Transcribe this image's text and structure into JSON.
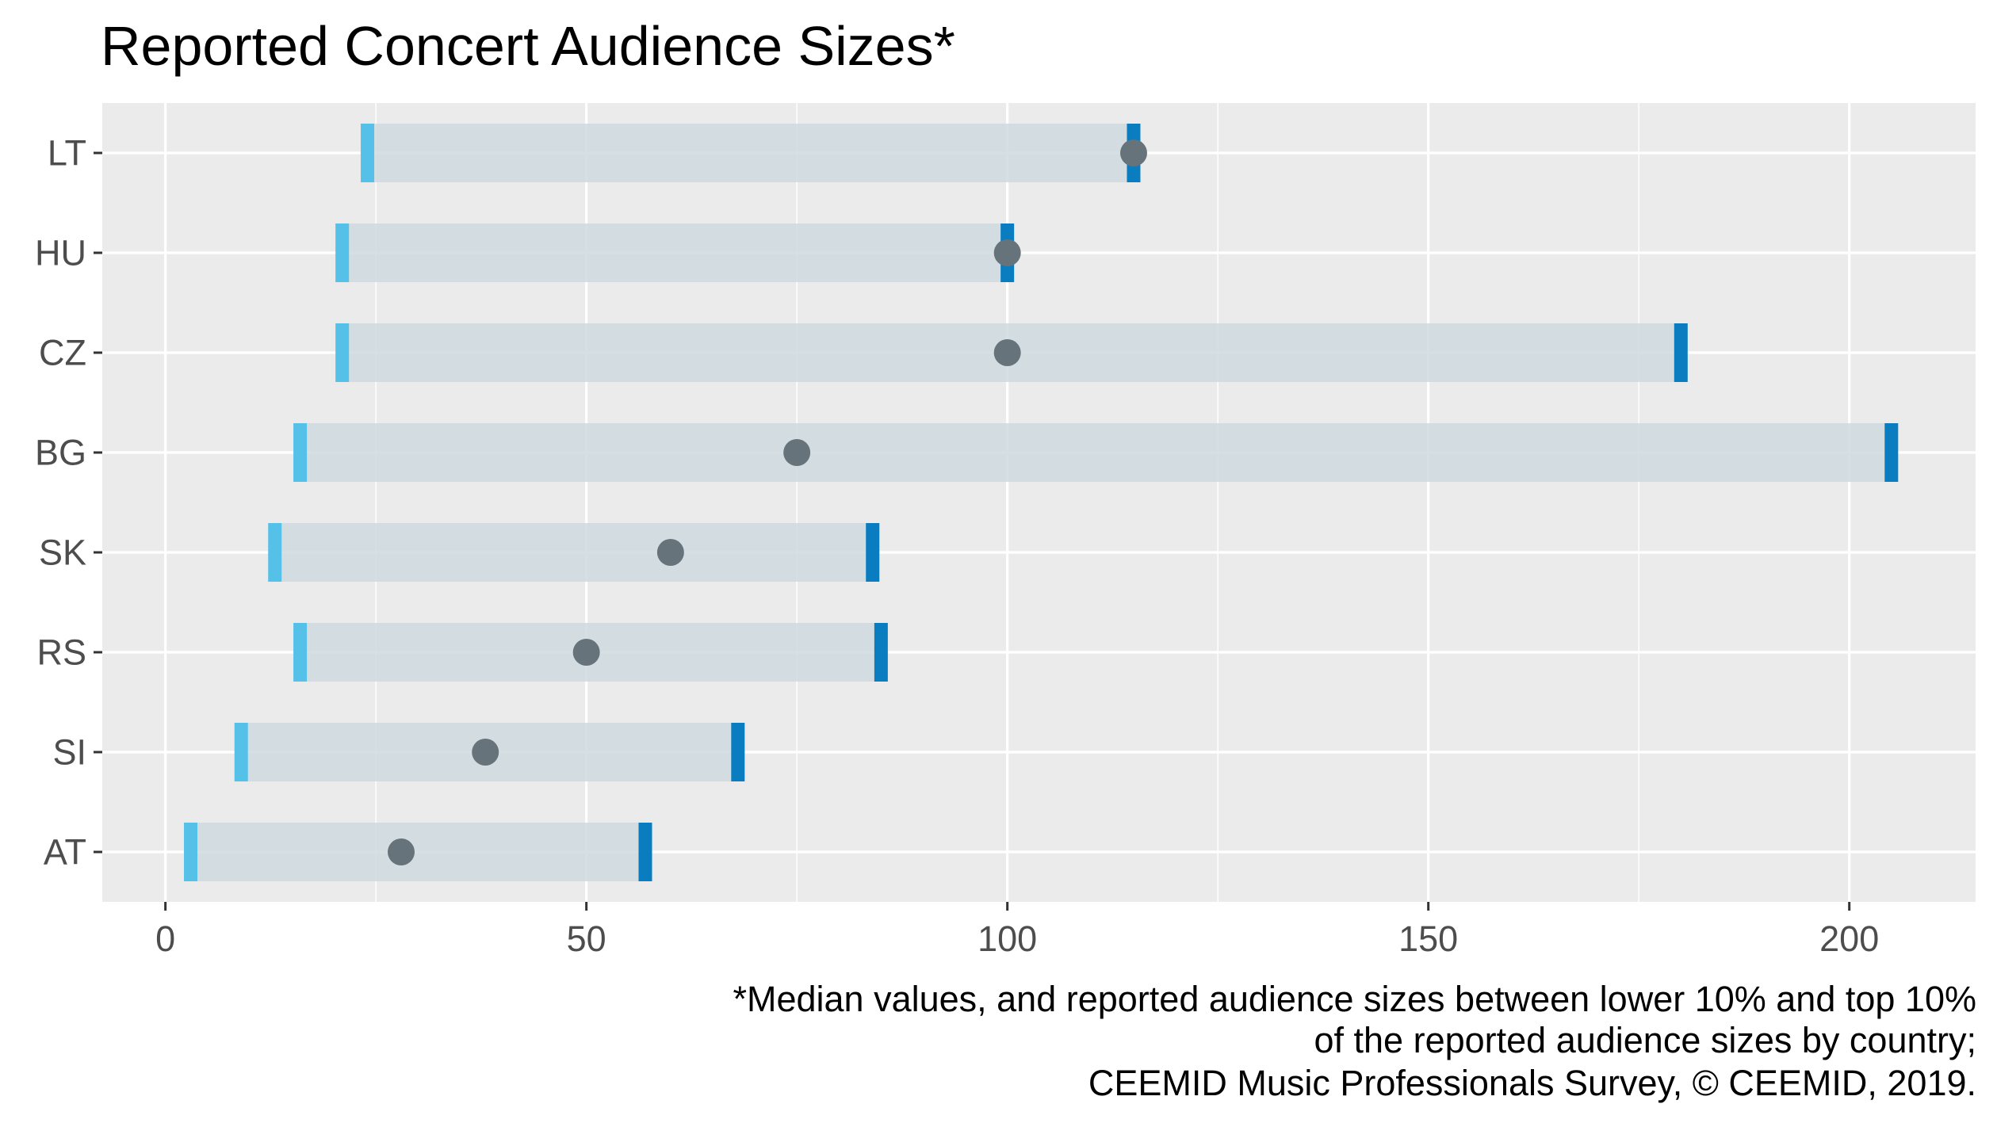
{
  "chart_data": {
    "type": "range_dot",
    "title": "Reported Concert Audience Sizes*",
    "xlabel": "",
    "ylabel": "",
    "xlim": [
      -7.5,
      215
    ],
    "x_ticks": [
      0,
      50,
      100,
      150,
      200
    ],
    "grid": true,
    "categories": [
      "LT",
      "HU",
      "CZ",
      "BG",
      "SK",
      "RS",
      "SI",
      "AT"
    ],
    "lower_10pct": [
      24,
      21,
      21,
      16,
      13,
      16,
      9,
      3
    ],
    "top_10pct": [
      115,
      100,
      180,
      205,
      84,
      85,
      68,
      57
    ],
    "median": [
      115,
      100,
      100,
      75,
      60,
      50,
      38,
      28
    ],
    "caption": [
      "*Median values, and reported audience sizes between lower 10% and top 10%",
      "of the reported audience sizes by country;",
      "CEEMID Music Professionals Survey, © CEEMID, 2019."
    ],
    "colors": {
      "panel_background": "#ebebeb",
      "grid": "#ffffff",
      "range_bar": "#cfdadf",
      "lower_marker": "#56c1e8",
      "upper_marker": "#0a7cc0",
      "median_point": "#67737b",
      "axis_text": "#4d4d4d",
      "tick_mark": "#333333"
    }
  }
}
